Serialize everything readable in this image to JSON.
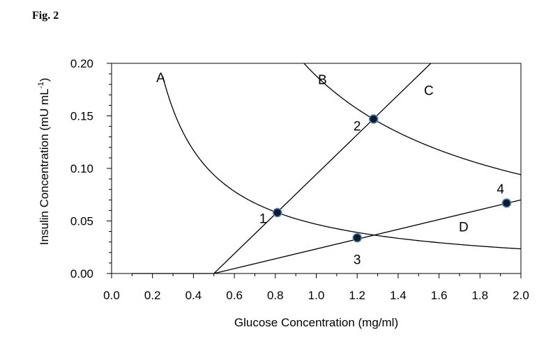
{
  "figure_label": "Fig. 2",
  "chart_data": {
    "type": "line",
    "title": "",
    "xlabel": "Glucose Concentration (mg/ml)",
    "ylabel_main": "Insulin Concentration (mU mL",
    "ylabel_sup": "-1",
    "ylabel_close": ")",
    "xlim": [
      0.0,
      2.0
    ],
    "ylim": [
      0.0,
      0.2
    ],
    "x_ticks": [
      0.0,
      0.2,
      0.4,
      0.6,
      0.8,
      1.0,
      1.2,
      1.4,
      1.6,
      1.8,
      2.0
    ],
    "x_tick_labels": [
      "0.0",
      "0.2",
      "0.4",
      "0.6",
      "0.8",
      "1.0",
      "1.2",
      "1.4",
      "1.6",
      "1.8",
      "2.0"
    ],
    "y_ticks": [
      0.0,
      0.05,
      0.1,
      0.15,
      0.2
    ],
    "y_tick_labels": [
      "0.00",
      "0.05",
      "0.10",
      "0.15",
      "0.20"
    ],
    "grid": false,
    "series": [
      {
        "name": "A",
        "kind": "hyperbola",
        "k": 0.0469,
        "x_start": 0.25,
        "x_end": 2.0,
        "label_at": [
          0.24,
          0.182
        ]
      },
      {
        "name": "B",
        "kind": "hyperbola",
        "k": 0.188,
        "x_start": 0.94,
        "x_end": 2.0,
        "label_at": [
          1.03,
          0.18
        ]
      },
      {
        "name": "C",
        "kind": "polyline",
        "points": [
          [
            0.1,
            0.0
          ],
          [
            0.5,
            0.0
          ],
          [
            1.56,
            0.2
          ]
        ],
        "label_at": [
          1.55,
          0.17
        ]
      },
      {
        "name": "D",
        "kind": "polyline",
        "points": [
          [
            0.5,
            0.0
          ],
          [
            2.0,
            0.07
          ]
        ],
        "label_at": [
          1.72,
          0.04
        ]
      }
    ],
    "annotated_points": [
      {
        "label": "1",
        "x": 0.81,
        "y": 0.058,
        "label_at": [
          0.74,
          0.052
        ]
      },
      {
        "label": "2",
        "x": 1.28,
        "y": 0.147,
        "label_at": [
          1.2,
          0.14
        ]
      },
      {
        "label": "3",
        "x": 1.2,
        "y": 0.034,
        "label_at": [
          1.2,
          0.013
        ]
      },
      {
        "label": "4",
        "x": 1.93,
        "y": 0.067,
        "label_at": [
          1.9,
          0.08
        ]
      }
    ]
  }
}
